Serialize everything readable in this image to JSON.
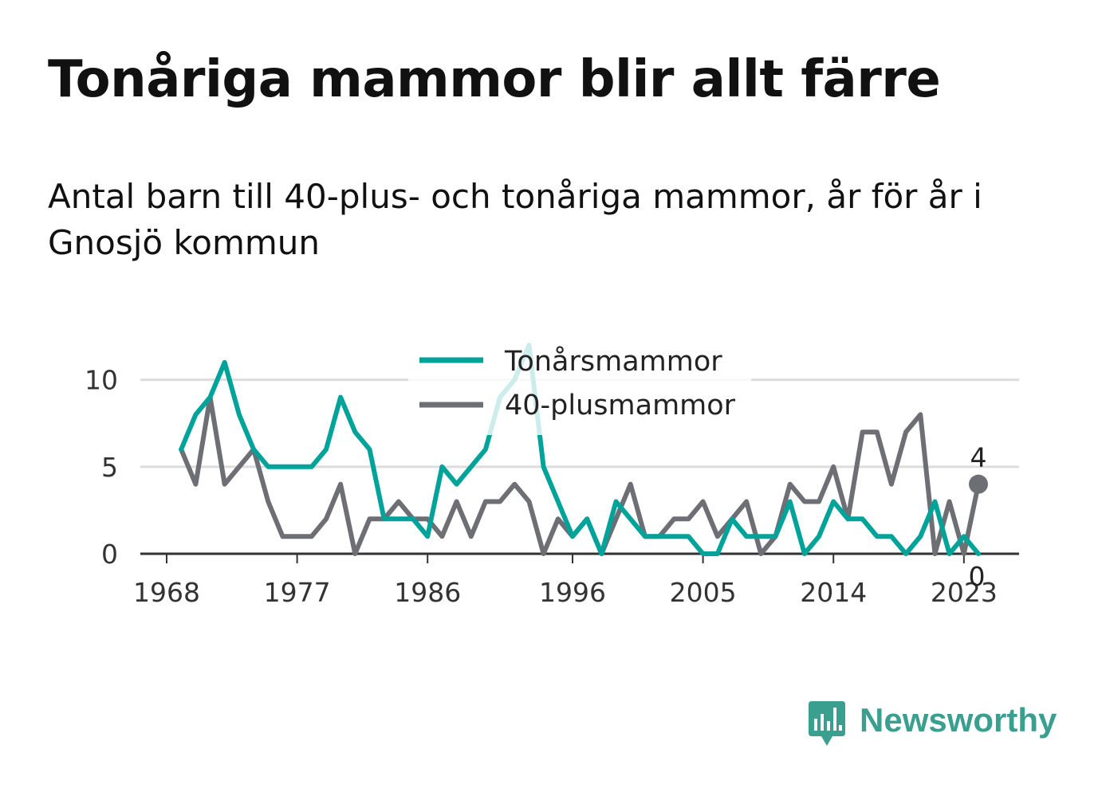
{
  "title": "Tonåriga mammor blir allt färre",
  "subtitle": "Antal barn till 40-plus- och tonåriga mammor, år för år i Gnosjö kommun",
  "brand": {
    "name": "Newsworthy",
    "color": "#3a9f8f"
  },
  "colors": {
    "teen": "#00a39a",
    "forty": "#6e6e75",
    "grid": "#dddddd",
    "baseline": "#333333",
    "tick_text": "#333333"
  },
  "chart_data": {
    "type": "line",
    "x": [
      1969,
      1970,
      1971,
      1972,
      1973,
      1974,
      1975,
      1976,
      1977,
      1978,
      1979,
      1980,
      1981,
      1982,
      1983,
      1984,
      1985,
      1986,
      1987,
      1988,
      1989,
      1990,
      1991,
      1992,
      1993,
      1994,
      1995,
      1996,
      1997,
      1998,
      1999,
      2000,
      2001,
      2002,
      2003,
      2004,
      2005,
      2006,
      2007,
      2008,
      2009,
      2010,
      2011,
      2012,
      2013,
      2014,
      2015,
      2016,
      2017,
      2018,
      2019,
      2020,
      2021,
      2022,
      2023,
      2024
    ],
    "series": [
      {
        "name": "Tonårsmammor",
        "color": "#00a39a",
        "values": [
          6,
          8,
          9,
          11,
          8,
          6,
          5,
          5,
          5,
          5,
          6,
          9,
          7,
          6,
          2,
          2,
          2,
          1,
          5,
          4,
          5,
          6,
          9,
          10,
          12,
          5,
          3,
          1,
          2,
          0,
          3,
          2,
          1,
          1,
          1,
          1,
          0,
          0,
          2,
          1,
          1,
          1,
          3,
          0,
          1,
          3,
          2,
          2,
          1,
          1,
          0,
          1,
          3,
          0,
          1,
          0
        ]
      },
      {
        "name": "40-plusmammor",
        "color": "#6e6e75",
        "values": [
          6,
          4,
          9,
          4,
          5,
          6,
          3,
          1,
          1,
          1,
          2,
          4,
          0,
          2,
          2,
          3,
          2,
          2,
          1,
          3,
          1,
          3,
          3,
          4,
          3,
          0,
          2,
          1,
          2,
          0,
          2,
          4,
          1,
          1,
          2,
          2,
          3,
          1,
          2,
          3,
          0,
          1,
          4,
          3,
          3,
          5,
          2,
          7,
          7,
          4,
          7,
          8,
          0,
          3,
          0,
          4
        ]
      }
    ],
    "xticks": [
      1968,
      1977,
      1986,
      1996,
      2005,
      2014,
      2023
    ],
    "yticks": [
      0,
      5,
      10
    ],
    "ylim": [
      0,
      12
    ],
    "xlim": [
      1968,
      2024
    ],
    "end_labels": [
      {
        "series": "40-plusmammor",
        "value": "4"
      },
      {
        "series": "Tonårsmammor",
        "value": "0"
      }
    ],
    "legend_position": "top-center",
    "grid": true,
    "xlabel": "",
    "ylabel": ""
  }
}
